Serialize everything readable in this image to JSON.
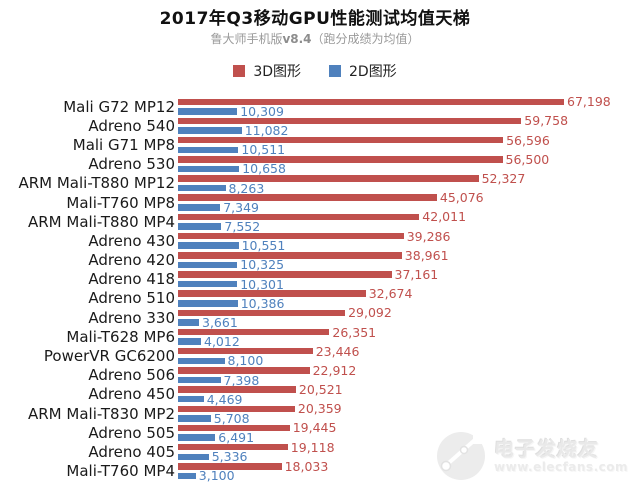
{
  "header": {
    "title": "2017年Q3移动GPU性能测试均值天梯",
    "subtitle_prefix": "鲁大师手机版",
    "subtitle_version": "v8.4",
    "subtitle_suffix": "（跑分成绩为均值）"
  },
  "legend": [
    {
      "label": "3D图形",
      "color": "#c0504d"
    },
    {
      "label": "2D图形",
      "color": "#4f81bd"
    }
  ],
  "watermark": {
    "site_name": "电子发烧友",
    "site_url": "www.elecfans.com",
    "logo": "circuit-circle-logo"
  },
  "chart_data": {
    "type": "bar",
    "orientation": "horizontal",
    "title": "2017年Q3移动GPU性能测试均值天梯",
    "subtitle": "鲁大师手机版v8.4（跑分成绩为均值）",
    "xlabel": "",
    "ylabel": "",
    "xlim": [
      0,
      67198
    ],
    "grid": false,
    "legend_position": "top-center",
    "value_labels": "outside-end",
    "categories": [
      "Mali G72 MP12",
      "Adreno 540",
      "Mali G71 MP8",
      "Adreno 530",
      "ARM Mali-T880 MP12",
      "Mali-T760 MP8",
      "ARM Mali-T880 MP4",
      "Adreno 430",
      "Adreno 420",
      "Adreno 418",
      "Adreno 510",
      "Adreno 330",
      "Mali-T628 MP6",
      "PowerVR GC6200",
      "Adreno 506",
      "Adreno 450",
      "ARM Mali-T830 MP2",
      "Adreno 505",
      "Adreno 405",
      "Mali-T760 MP4"
    ],
    "series": [
      {
        "name": "3D图形",
        "color": "#c0504d",
        "values": [
          67198,
          59758,
          56596,
          56500,
          52327,
          45076,
          42011,
          39286,
          38961,
          37161,
          32674,
          29092,
          26351,
          23446,
          22912,
          20521,
          20359,
          19445,
          19118,
          18033
        ]
      },
      {
        "name": "2D图形",
        "color": "#4f81bd",
        "values": [
          10309,
          11082,
          10511,
          10658,
          8263,
          7349,
          7552,
          10551,
          10325,
          10301,
          10386,
          3661,
          4012,
          8100,
          7398,
          4469,
          5708,
          6491,
          5336,
          3100
        ]
      }
    ]
  }
}
